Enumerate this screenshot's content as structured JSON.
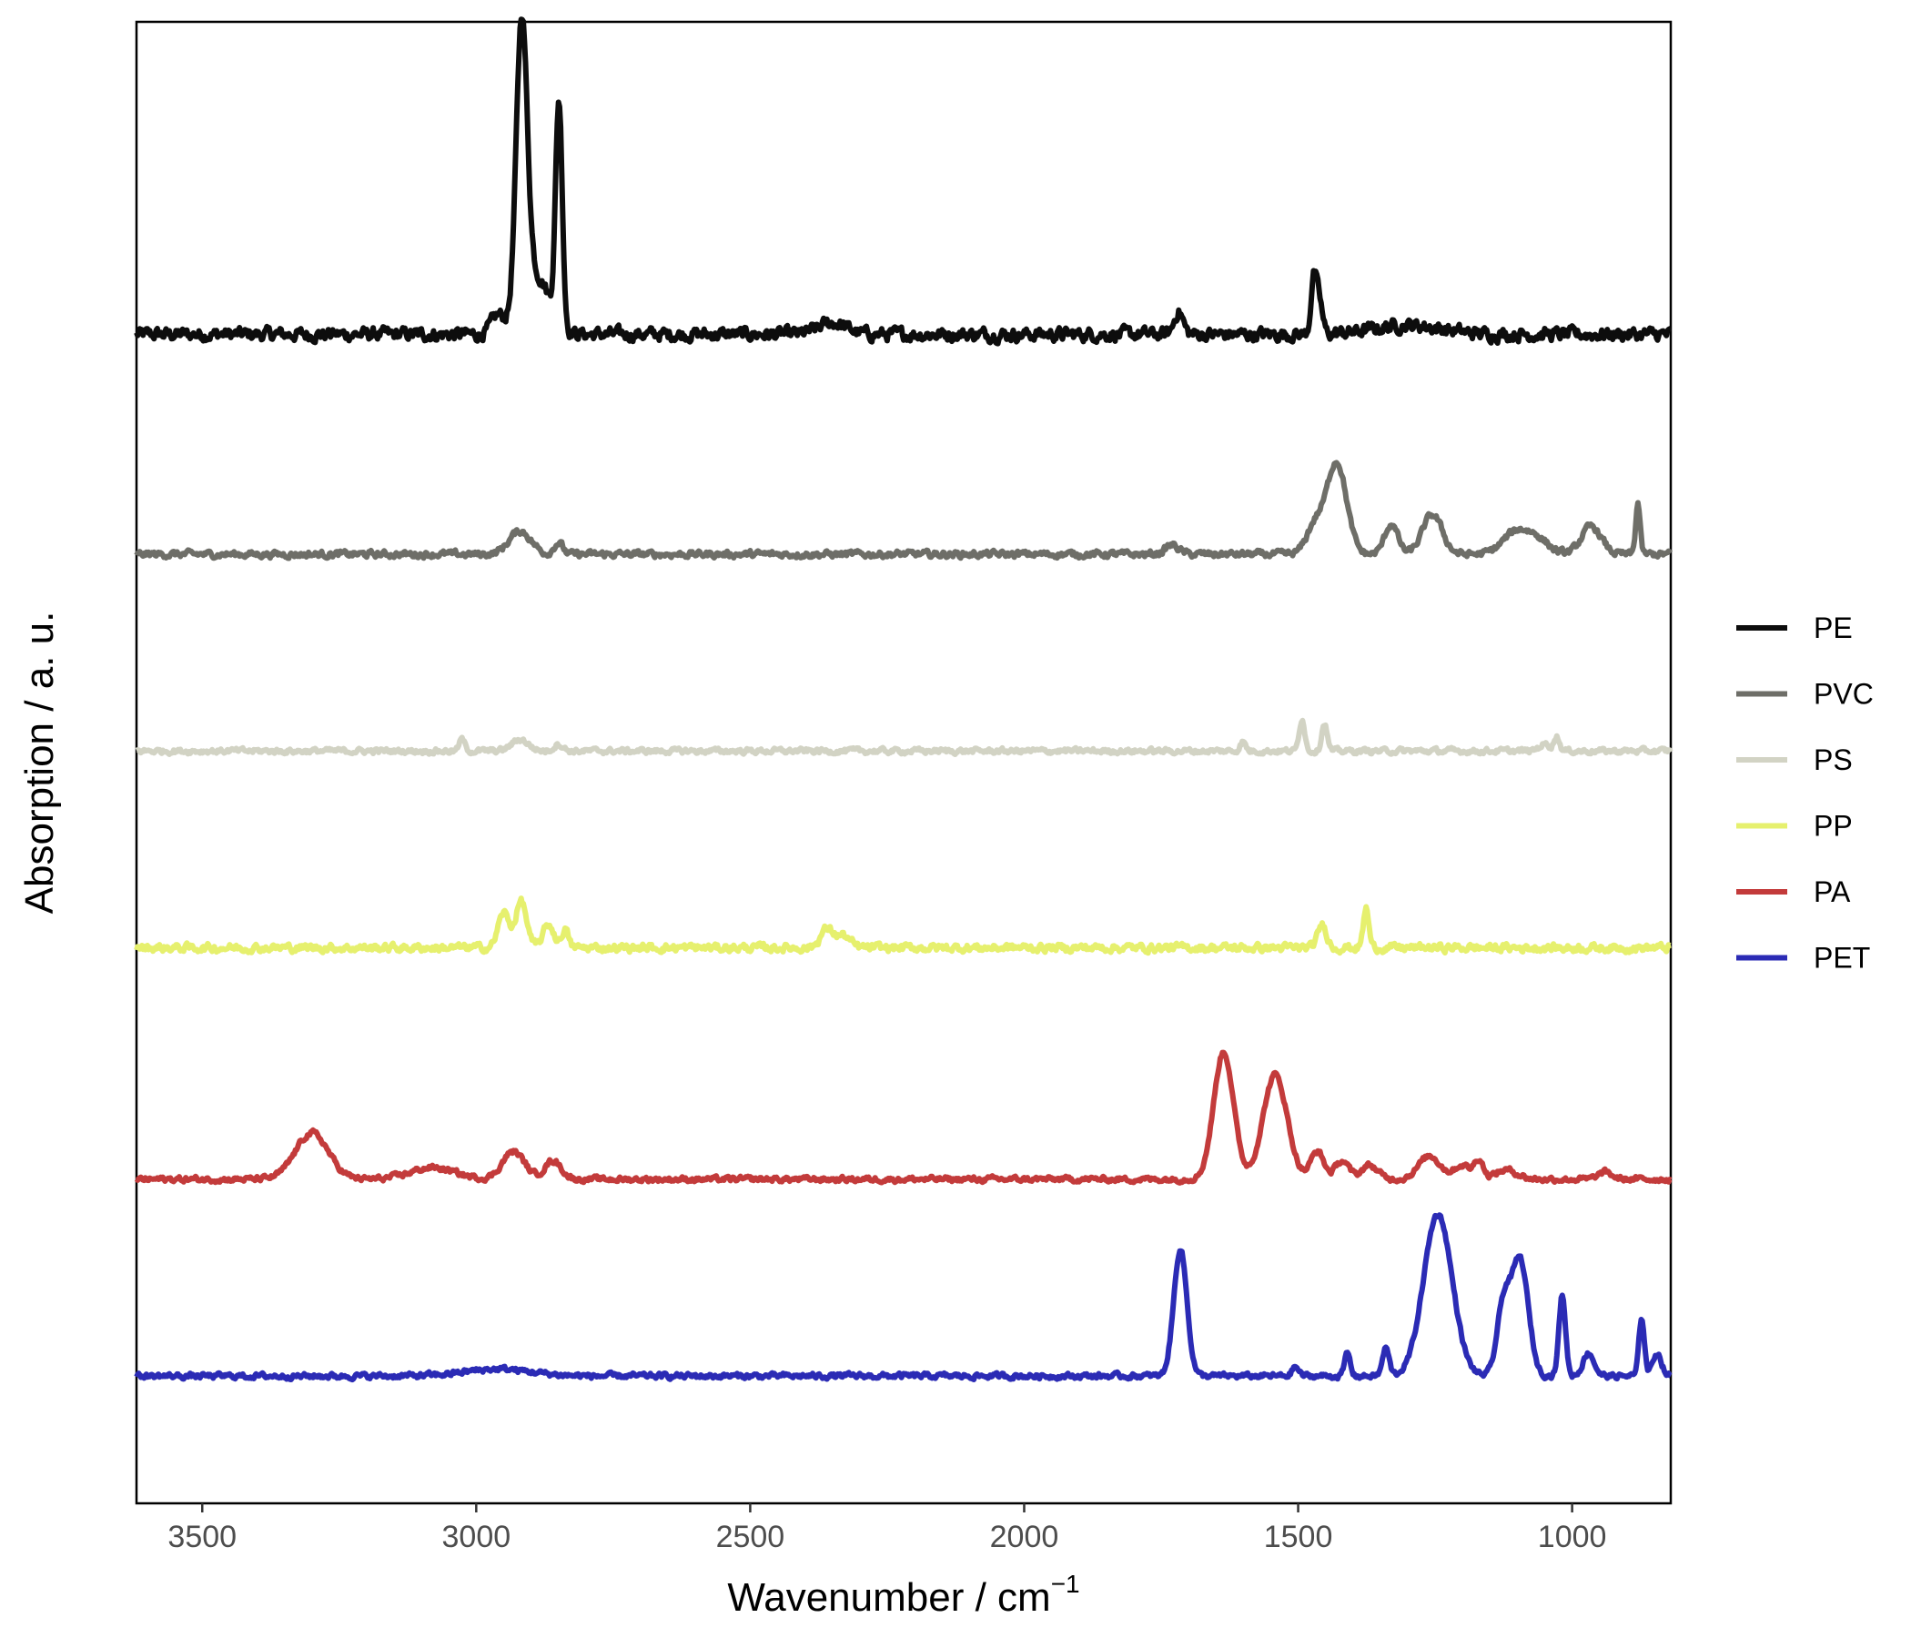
{
  "chart_data": {
    "type": "line",
    "xlabel": "Wavenumber / cm",
    "xlabel_superscript": "−1",
    "ylabel": "Absorption / a. u.",
    "xlim": [
      3620,
      820
    ],
    "x_reversed": true,
    "x_ticks": [
      3500,
      3000,
      2500,
      2000,
      1500,
      1000
    ],
    "y_ticks": false,
    "grid": false,
    "legend_position": "right",
    "series": [
      {
        "name": "PE",
        "color": "#0d0d0d",
        "baseline": 5.05,
        "noise": 0.05,
        "peaks": [
          {
            "c": 2917,
            "h": 1.25,
            "w": 10
          },
          {
            "c": 2890,
            "h": 0.25,
            "w": 25
          },
          {
            "c": 2849,
            "h": 0.95,
            "w": 6
          },
          {
            "c": 2960,
            "h": 0.08,
            "w": 12
          },
          {
            "c": 2350,
            "h": 0.05,
            "w": 25
          },
          {
            "c": 1718,
            "h": 0.1,
            "w": 8
          },
          {
            "c": 1472,
            "h": 0.22,
            "w": 5
          },
          {
            "c": 1462,
            "h": 0.15,
            "w": 6
          },
          {
            "c": 1300,
            "h": 0.04,
            "w": 60
          }
        ]
      },
      {
        "name": "PVC",
        "color": "#6e6e68",
        "baseline": 4.1,
        "noise": 0.025,
        "peaks": [
          {
            "c": 2920,
            "h": 0.1,
            "w": 20
          },
          {
            "c": 2850,
            "h": 0.05,
            "w": 8
          },
          {
            "c": 1730,
            "h": 0.04,
            "w": 12
          },
          {
            "c": 1430,
            "h": 0.4,
            "w": 18
          },
          {
            "c": 1470,
            "h": 0.12,
            "w": 15
          },
          {
            "c": 1330,
            "h": 0.13,
            "w": 12
          },
          {
            "c": 1255,
            "h": 0.17,
            "w": 18
          },
          {
            "c": 1100,
            "h": 0.1,
            "w": 25
          },
          {
            "c": 1060,
            "h": 0.05,
            "w": 20
          },
          {
            "c": 965,
            "h": 0.12,
            "w": 18
          },
          {
            "c": 880,
            "h": 0.22,
            "w": 4
          }
        ]
      },
      {
        "name": "PS",
        "color": "#d2d3c4",
        "baseline": 3.25,
        "noise": 0.02,
        "peaks": [
          {
            "c": 3026,
            "h": 0.05,
            "w": 5
          },
          {
            "c": 2920,
            "h": 0.05,
            "w": 15
          },
          {
            "c": 2850,
            "h": 0.03,
            "w": 8
          },
          {
            "c": 1601,
            "h": 0.04,
            "w": 5
          },
          {
            "c": 1493,
            "h": 0.14,
            "w": 5
          },
          {
            "c": 1452,
            "h": 0.12,
            "w": 5
          },
          {
            "c": 1028,
            "h": 0.06,
            "w": 5
          },
          {
            "c": 1050,
            "h": 0.03,
            "w": 10
          }
        ]
      },
      {
        "name": "PP",
        "color": "#e6f06e",
        "baseline": 2.4,
        "noise": 0.03,
        "peaks": [
          {
            "c": 2950,
            "h": 0.15,
            "w": 10
          },
          {
            "c": 2918,
            "h": 0.2,
            "w": 10
          },
          {
            "c": 2868,
            "h": 0.1,
            "w": 10
          },
          {
            "c": 2838,
            "h": 0.08,
            "w": 6
          },
          {
            "c": 2360,
            "h": 0.08,
            "w": 12
          },
          {
            "c": 2330,
            "h": 0.05,
            "w": 12
          },
          {
            "c": 1456,
            "h": 0.1,
            "w": 8
          },
          {
            "c": 1376,
            "h": 0.17,
            "w": 5
          }
        ]
      },
      {
        "name": "PA",
        "color": "#c33b3b",
        "baseline": 1.4,
        "noise": 0.02,
        "peaks": [
          {
            "c": 3300,
            "h": 0.2,
            "w": 30
          },
          {
            "c": 3080,
            "h": 0.05,
            "w": 40
          },
          {
            "c": 2932,
            "h": 0.12,
            "w": 20
          },
          {
            "c": 2860,
            "h": 0.08,
            "w": 15
          },
          {
            "c": 1636,
            "h": 0.55,
            "w": 18
          },
          {
            "c": 1542,
            "h": 0.45,
            "w": 22
          },
          {
            "c": 1465,
            "h": 0.12,
            "w": 12
          },
          {
            "c": 1420,
            "h": 0.08,
            "w": 12
          },
          {
            "c": 1370,
            "h": 0.06,
            "w": 15
          },
          {
            "c": 1260,
            "h": 0.1,
            "w": 20
          },
          {
            "c": 1200,
            "h": 0.06,
            "w": 15
          },
          {
            "c": 1170,
            "h": 0.08,
            "w": 8
          },
          {
            "c": 1120,
            "h": 0.04,
            "w": 20
          },
          {
            "c": 940,
            "h": 0.03,
            "w": 12
          }
        ]
      },
      {
        "name": "PET",
        "color": "#2b2bb5",
        "baseline": 0.55,
        "noise": 0.02,
        "peaks": [
          {
            "c": 2960,
            "h": 0.03,
            "w": 60
          },
          {
            "c": 1715,
            "h": 0.55,
            "w": 12
          },
          {
            "c": 1505,
            "h": 0.04,
            "w": 6
          },
          {
            "c": 1410,
            "h": 0.1,
            "w": 5
          },
          {
            "c": 1340,
            "h": 0.12,
            "w": 6
          },
          {
            "c": 1245,
            "h": 0.7,
            "w": 26
          },
          {
            "c": 1125,
            "h": 0.3,
            "w": 12
          },
          {
            "c": 1095,
            "h": 0.5,
            "w": 15
          },
          {
            "c": 1018,
            "h": 0.35,
            "w": 6
          },
          {
            "c": 970,
            "h": 0.1,
            "w": 10
          },
          {
            "c": 873,
            "h": 0.25,
            "w": 5
          },
          {
            "c": 845,
            "h": 0.1,
            "w": 8
          }
        ]
      }
    ]
  }
}
